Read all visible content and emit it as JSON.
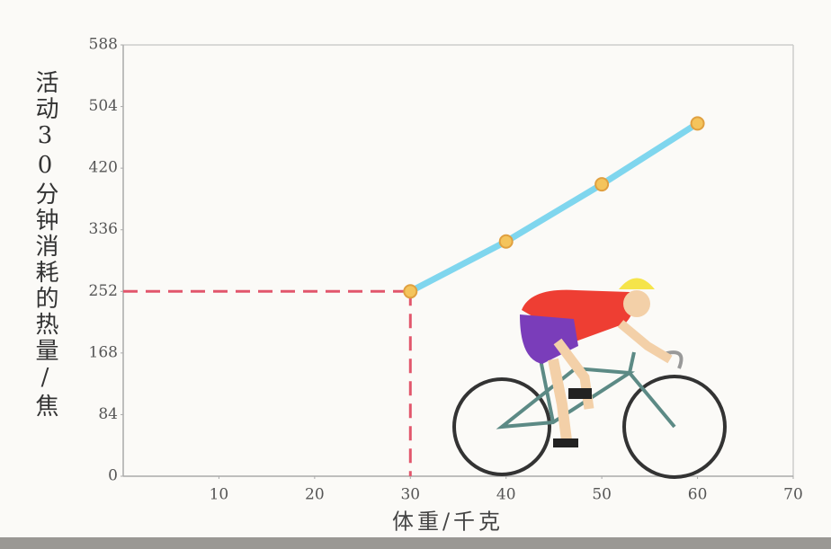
{
  "chart_data": {
    "type": "line",
    "y_label": "活动30分钟消耗的热量/焦",
    "x_label": "体重/千克",
    "x": [
      30,
      40,
      50,
      60
    ],
    "series": [
      {
        "color": "#7fd6ee",
        "values": [
          252,
          320,
          398,
          481
        ]
      }
    ],
    "xlim": [
      0,
      70
    ],
    "xticks": [
      10,
      20,
      30,
      40,
      50,
      60,
      70
    ],
    "ylim": [
      0,
      588
    ],
    "yticks": [
      0,
      84,
      168,
      252,
      336,
      420,
      504,
      588
    ],
    "marker_color": "#f4c45c",
    "guide_color": "#e2566c"
  }
}
